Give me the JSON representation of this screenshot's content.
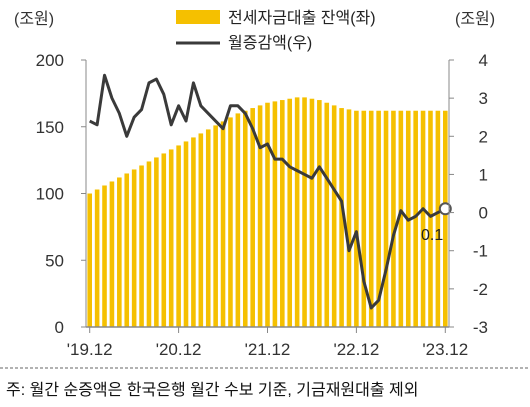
{
  "chart_data": {
    "type": "bar+line",
    "x": [
      "'19.12",
      "'20.01",
      "'20.02",
      "'20.03",
      "'20.04",
      "'20.05",
      "'20.06",
      "'20.07",
      "'20.08",
      "'20.09",
      "'20.10",
      "'20.11",
      "'20.12",
      "'21.01",
      "'21.02",
      "'21.03",
      "'21.04",
      "'21.05",
      "'21.06",
      "'21.07",
      "'21.08",
      "'21.09",
      "'21.10",
      "'21.11",
      "'21.12",
      "'22.01",
      "'22.02",
      "'22.03",
      "'22.04",
      "'22.05",
      "'22.06",
      "'22.07",
      "'22.08",
      "'22.09",
      "'22.10",
      "'22.11",
      "'22.12",
      "'23.01",
      "'23.02",
      "'23.03",
      "'23.04",
      "'23.05",
      "'23.06",
      "'23.07",
      "'23.08",
      "'23.09",
      "'23.10",
      "'23.11",
      "'23.12"
    ],
    "x_tick_labels": [
      "'19.12",
      "'20.12",
      "'21.12",
      "'22.12",
      "'23.12"
    ],
    "unit_left": "(조원)",
    "unit_right": "(조원)",
    "y_left": {
      "min": 0,
      "max": 200,
      "ticks": [
        "0",
        "50",
        "100",
        "150",
        "200"
      ]
    },
    "y_right": {
      "min": -3,
      "max": 4,
      "ticks": [
        "-3",
        "-2",
        "-1",
        "0",
        "1",
        "2",
        "3",
        "4"
      ]
    },
    "series": [
      {
        "name": "전세자금대출 잔액(좌)",
        "type": "bar",
        "axis": "left",
        "color": "#F5C000",
        "values": [
          100,
          103,
          106,
          109,
          112,
          115,
          118,
          121,
          124,
          127,
          130,
          133,
          136,
          139,
          142,
          145,
          148,
          151,
          154,
          157,
          160,
          162,
          164,
          166,
          168,
          169,
          170,
          171,
          172,
          172,
          171,
          170,
          168,
          166,
          164,
          163,
          162,
          162,
          162,
          162,
          162,
          162,
          162,
          162,
          162,
          162,
          162,
          162,
          162
        ]
      },
      {
        "name": "월증감액(우)",
        "type": "line",
        "axis": "right",
        "color": "#3A3A3A",
        "values": [
          2.4,
          2.3,
          3.6,
          3.0,
          2.6,
          2.0,
          2.5,
          2.7,
          3.4,
          3.5,
          3.1,
          2.3,
          2.8,
          2.4,
          3.4,
          2.8,
          2.6,
          2.4,
          2.2,
          2.8,
          2.8,
          2.6,
          2.2,
          1.7,
          1.8,
          1.4,
          1.4,
          1.2,
          1.1,
          1.0,
          0.9,
          1.2,
          0.9,
          0.6,
          0.3,
          -1.0,
          -0.5,
          -1.8,
          -2.5,
          -2.3,
          -1.5,
          -0.6,
          0.05,
          -0.2,
          -0.1,
          0.1,
          -0.1,
          0.0,
          0.1
        ]
      }
    ],
    "annotation": {
      "text": "0.1"
    },
    "grid": false,
    "legend_position": "top-center"
  },
  "note": "주: 월간 순증액은 한국은행 월간 수보 기준, 기금재원대출 제외"
}
